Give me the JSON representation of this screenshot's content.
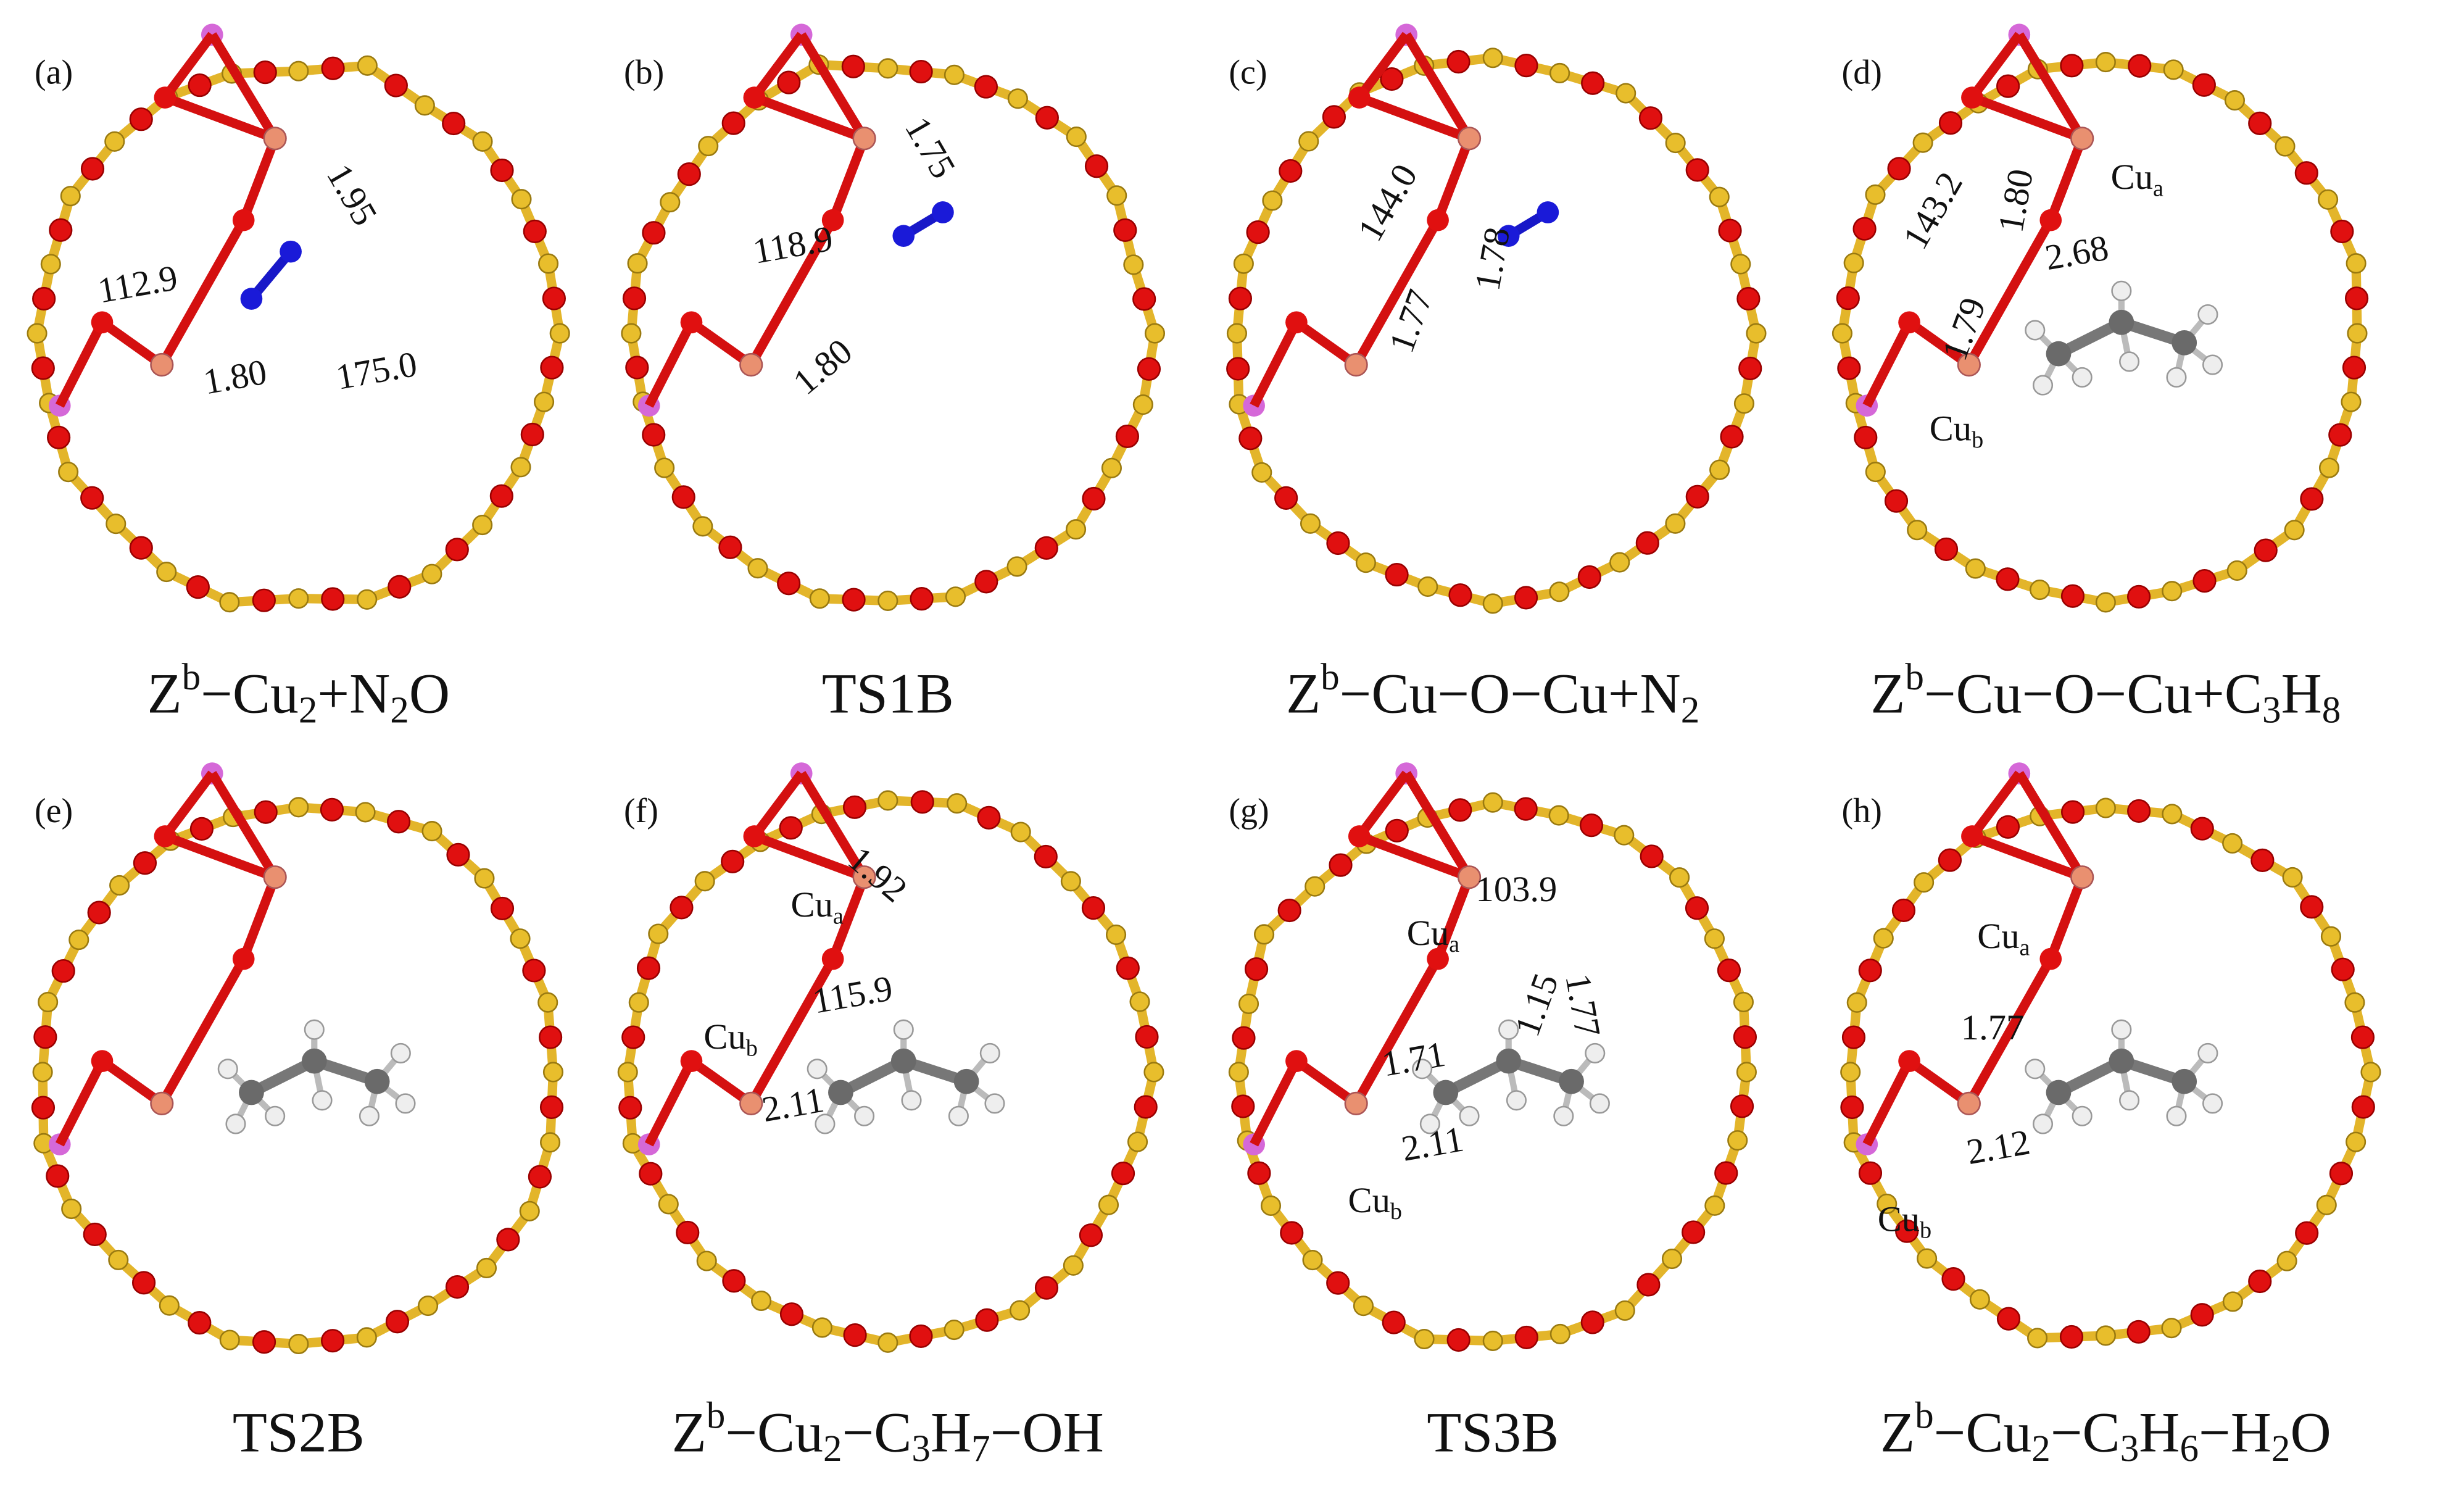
{
  "panels": [
    {
      "letter": "(a)",
      "caption": [
        [
          "Z",
          "base"
        ],
        [
          "b",
          "sup"
        ],
        [
          "−Cu",
          "base"
        ],
        [
          "2",
          "sub"
        ],
        [
          "+N",
          "base"
        ],
        [
          "2",
          "sub"
        ],
        [
          "O",
          "base"
        ]
      ],
      "labels": [
        "1.95",
        "112.9",
        "1.80",
        "175.0"
      ]
    },
    {
      "letter": "(b)",
      "caption": [
        [
          "TS1B",
          "base"
        ]
      ],
      "labels": [
        "1.75",
        "118.9",
        "1.80"
      ]
    },
    {
      "letter": "(c)",
      "caption": [
        [
          "Z",
          "base"
        ],
        [
          "b",
          "sup"
        ],
        [
          "−Cu−O−Cu+N",
          "base"
        ],
        [
          "2",
          "sub"
        ]
      ],
      "labels": [
        "144.0",
        "1.78",
        "1.77"
      ]
    },
    {
      "letter": "(d)",
      "caption": [
        [
          "Z",
          "base"
        ],
        [
          "b",
          "sup"
        ],
        [
          "−Cu−O−Cu+C",
          "base"
        ],
        [
          "3",
          "sub"
        ],
        [
          "H",
          "base"
        ],
        [
          "8",
          "sub"
        ]
      ],
      "labels": [
        "143.2",
        "1.80",
        "2.68",
        "1.79",
        [
          "Cu",
          "a"
        ],
        [
          "Cu",
          "b"
        ]
      ]
    },
    {
      "letter": "(e)",
      "caption": [
        [
          "TS2B",
          "base"
        ]
      ],
      "labels": []
    },
    {
      "letter": "(f)",
      "caption": [
        [
          "Z",
          "base"
        ],
        [
          "b",
          "sup"
        ],
        [
          "−Cu",
          "base"
        ],
        [
          "2",
          "sub"
        ],
        [
          "−C",
          "base"
        ],
        [
          "3",
          "sub"
        ],
        [
          "H",
          "base"
        ],
        [
          "7",
          "sub"
        ],
        [
          "−OH",
          "base"
        ]
      ],
      "labels": [
        [
          "Cu",
          "a"
        ],
        "1.92",
        "115.9",
        [
          "Cu",
          "b"
        ],
        "2.11"
      ]
    },
    {
      "letter": "(g)",
      "caption": [
        [
          "TS3B",
          "base"
        ]
      ],
      "labels": [
        [
          "Cu",
          "a"
        ],
        "103.9",
        "1.15",
        "1.77",
        "1.71",
        "2.11",
        [
          "Cu",
          "b"
        ]
      ]
    },
    {
      "letter": "(h)",
      "caption": [
        [
          "Z",
          "base"
        ],
        [
          "b",
          "sup"
        ],
        [
          "−Cu",
          "base"
        ],
        [
          "2",
          "sub"
        ],
        [
          "−C",
          "base"
        ],
        [
          "3",
          "sub"
        ],
        [
          "H",
          "base"
        ],
        [
          "6",
          "sub"
        ],
        [
          "−H",
          "base"
        ],
        [
          "2",
          "sub"
        ],
        [
          "O",
          "base"
        ]
      ],
      "labels": [
        [
          "Cu",
          "a"
        ],
        "1.77",
        "2.12",
        [
          "Cu",
          "b"
        ]
      ]
    }
  ]
}
